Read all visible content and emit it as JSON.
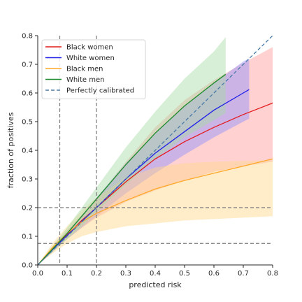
{
  "chart_data": {
    "type": "line",
    "xlabel": "predicted risk",
    "ylabel": "fraction of positives",
    "xlim": [
      0,
      0.8
    ],
    "ylim": [
      0,
      0.8
    ],
    "xticks": [
      "0.0",
      "0.1",
      "0.2",
      "0.3",
      "0.4",
      "0.5",
      "0.6",
      "0.7",
      "0.8"
    ],
    "yticks": [
      "0.0",
      "0.1",
      "0.2",
      "0.3",
      "0.4",
      "0.5",
      "0.6",
      "0.7",
      "0.8"
    ],
    "grid": false,
    "legend_position": "top-left",
    "reference_lines": {
      "vertical_x": [
        0.075,
        0.2
      ],
      "horizontal_y": [
        0.075,
        0.2
      ]
    },
    "series": [
      {
        "name": "Black women",
        "color": "#e41a1c",
        "band_color": "#ff9a9a",
        "x": [
          0,
          0.05,
          0.1,
          0.15,
          0.2,
          0.3,
          0.4,
          0.5,
          0.6,
          0.7,
          0.8
        ],
        "y": [
          0,
          0.055,
          0.105,
          0.155,
          0.2,
          0.29,
          0.37,
          0.43,
          0.48,
          0.525,
          0.565
        ],
        "lower": [
          0,
          0.045,
          0.09,
          0.13,
          0.165,
          0.22,
          0.26,
          0.295,
          0.325,
          0.345,
          0.36
        ],
        "upper": [
          0,
          0.065,
          0.12,
          0.175,
          0.23,
          0.36,
          0.48,
          0.575,
          0.645,
          0.705,
          0.76
        ]
      },
      {
        "name": "White women",
        "color": "#1f1fe6",
        "band_color": "#8f8fff",
        "x": [
          0,
          0.05,
          0.1,
          0.15,
          0.2,
          0.3,
          0.4,
          0.5,
          0.6,
          0.7,
          0.72
        ],
        "y": [
          0,
          0.053,
          0.103,
          0.152,
          0.2,
          0.3,
          0.39,
          0.465,
          0.54,
          0.6,
          0.612
        ],
        "lower": [
          0,
          0.045,
          0.09,
          0.13,
          0.17,
          0.25,
          0.32,
          0.385,
          0.445,
          0.5,
          0.51
        ],
        "upper": [
          0,
          0.06,
          0.118,
          0.175,
          0.235,
          0.355,
          0.46,
          0.555,
          0.635,
          0.71,
          0.72
        ]
      },
      {
        "name": "Black men",
        "color": "#ffa726",
        "band_color": "#ffd68a",
        "x": [
          0,
          0.05,
          0.1,
          0.15,
          0.2,
          0.3,
          0.4,
          0.5,
          0.6,
          0.7,
          0.8
        ],
        "y": [
          0,
          0.06,
          0.11,
          0.15,
          0.18,
          0.225,
          0.265,
          0.295,
          0.32,
          0.345,
          0.37
        ],
        "lower": [
          0,
          0.04,
          0.075,
          0.1,
          0.115,
          0.135,
          0.145,
          0.155,
          0.16,
          0.165,
          0.17
        ],
        "upper": [
          0,
          0.075,
          0.135,
          0.19,
          0.235,
          0.305,
          0.34,
          0.355,
          0.36,
          0.363,
          0.365
        ]
      },
      {
        "name": "White men",
        "color": "#1b8a2a",
        "band_color": "#a5dca5",
        "x": [
          0,
          0.05,
          0.1,
          0.15,
          0.2,
          0.3,
          0.4,
          0.5,
          0.6,
          0.64
        ],
        "y": [
          0,
          0.055,
          0.11,
          0.17,
          0.23,
          0.35,
          0.46,
          0.555,
          0.635,
          0.665
        ],
        "lower": [
          0,
          0.045,
          0.09,
          0.135,
          0.185,
          0.28,
          0.37,
          0.445,
          0.505,
          0.53
        ],
        "upper": [
          0,
          0.065,
          0.13,
          0.2,
          0.27,
          0.41,
          0.535,
          0.65,
          0.745,
          0.795
        ]
      },
      {
        "name": "Perfectly calibrated",
        "color": "#4a7ba6",
        "dashed": true,
        "x": [
          0,
          0.8
        ],
        "y": [
          0,
          0.8
        ]
      }
    ]
  }
}
